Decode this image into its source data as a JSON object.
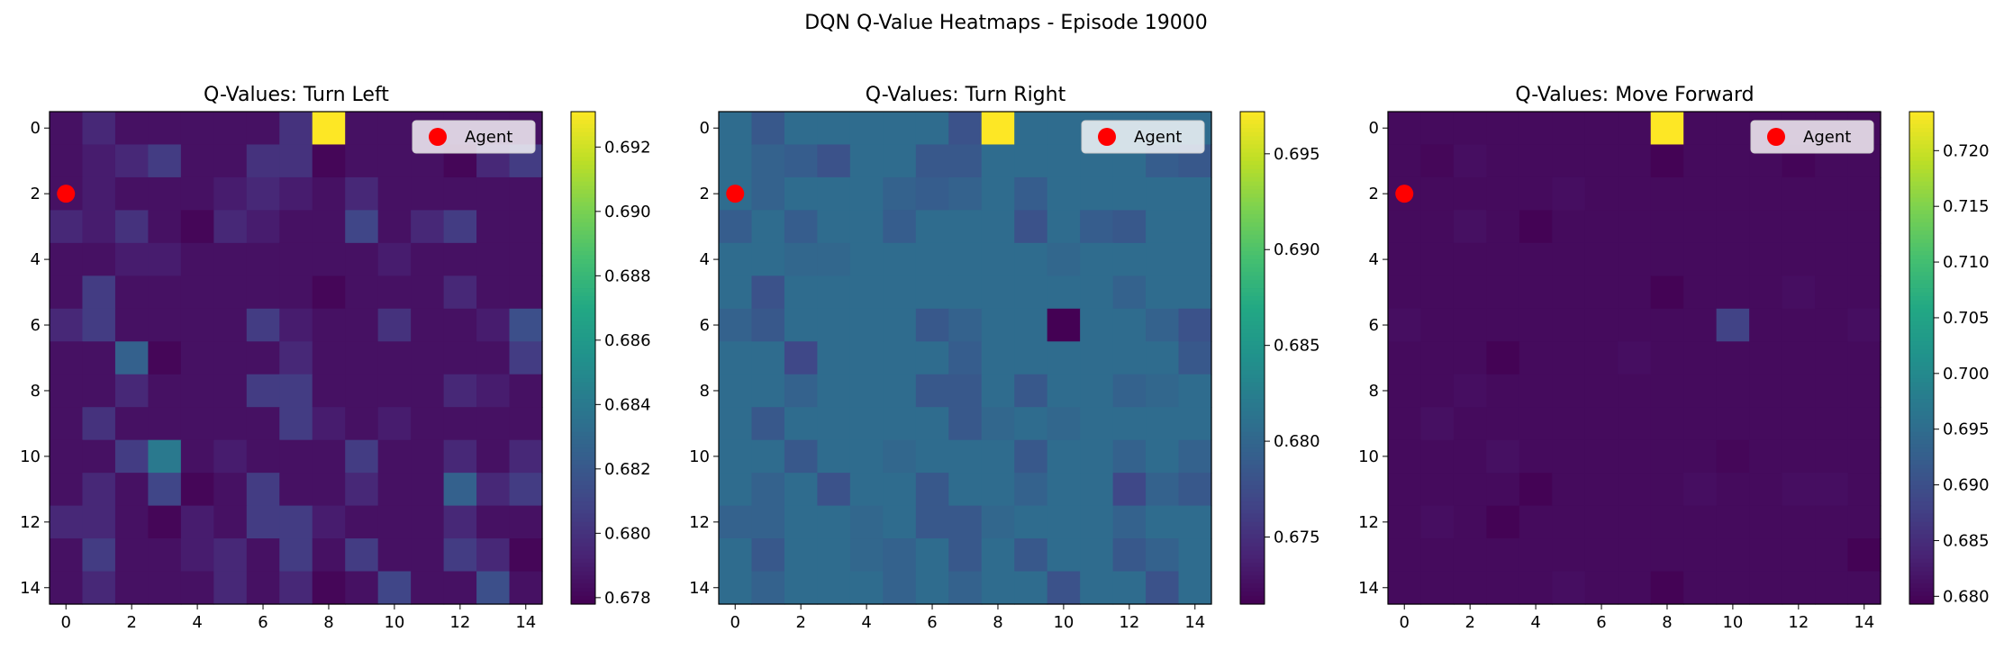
{
  "figure": {
    "title": "DQN Q-Value Heatmaps - Episode 19000",
    "legend_label": "Agent"
  },
  "chart_data": [
    {
      "type": "heatmap",
      "title": "Q-Values: Turn Left",
      "xticks": [
        0,
        2,
        4,
        6,
        8,
        10,
        12,
        14
      ],
      "yticks": [
        0,
        2,
        4,
        6,
        8,
        10,
        12,
        14
      ],
      "xlim": [
        -0.5,
        14.5
      ],
      "ylim": [
        14.5,
        -0.5
      ],
      "colormap": "viridis",
      "vmin": 0.6778,
      "vmax": 0.6931,
      "colorbar_ticks": [
        "0.678",
        "0.680",
        "0.682",
        "0.684",
        "0.686",
        "0.688",
        "0.690",
        "0.692"
      ],
      "agent": {
        "x": 0,
        "y": 2,
        "color": "#ff0000"
      },
      "legend": "top-right",
      "values": [
        [
          0.6785,
          0.6795,
          0.6785,
          0.6785,
          0.6785,
          0.6785,
          0.6785,
          0.68,
          0.6931,
          0.6785,
          0.6785,
          0.6785,
          0.6785,
          0.6785,
          0.6785
        ],
        [
          0.6785,
          0.679,
          0.6795,
          0.6805,
          0.6785,
          0.6785,
          0.68,
          0.68,
          0.678,
          0.6785,
          0.6785,
          0.6785,
          0.678,
          0.6795,
          0.6805
        ],
        [
          0.6785,
          0.679,
          0.6785,
          0.6785,
          0.6785,
          0.679,
          0.6795,
          0.679,
          0.6785,
          0.6795,
          0.6785,
          0.6785,
          0.6785,
          0.6785,
          0.6785
        ],
        [
          0.6795,
          0.679,
          0.68,
          0.6785,
          0.678,
          0.6795,
          0.679,
          0.6785,
          0.6785,
          0.681,
          0.6785,
          0.6795,
          0.6805,
          0.6785,
          0.6785
        ],
        [
          0.6785,
          0.6785,
          0.679,
          0.679,
          0.6785,
          0.6785,
          0.6785,
          0.6785,
          0.6785,
          0.6785,
          0.679,
          0.6785,
          0.6785,
          0.6785,
          0.6785
        ],
        [
          0.6785,
          0.6805,
          0.6785,
          0.6785,
          0.6785,
          0.6785,
          0.6785,
          0.6785,
          0.678,
          0.6785,
          0.6785,
          0.6785,
          0.6795,
          0.6785,
          0.6785
        ],
        [
          0.6795,
          0.6805,
          0.6785,
          0.6785,
          0.6785,
          0.6785,
          0.6805,
          0.679,
          0.6785,
          0.6785,
          0.68,
          0.6785,
          0.6785,
          0.679,
          0.6815
        ],
        [
          0.6785,
          0.6785,
          0.6825,
          0.678,
          0.6785,
          0.6785,
          0.6785,
          0.6795,
          0.6785,
          0.6785,
          0.6785,
          0.6785,
          0.6785,
          0.6785,
          0.6805
        ],
        [
          0.6785,
          0.6785,
          0.6795,
          0.6785,
          0.6785,
          0.6785,
          0.6805,
          0.6805,
          0.6785,
          0.6785,
          0.6785,
          0.6785,
          0.6795,
          0.679,
          0.6785
        ],
        [
          0.6785,
          0.68,
          0.6785,
          0.6785,
          0.6785,
          0.6785,
          0.6785,
          0.6805,
          0.679,
          0.6785,
          0.679,
          0.6785,
          0.6785,
          0.6785,
          0.6785
        ],
        [
          0.6785,
          0.6785,
          0.6805,
          0.684,
          0.6785,
          0.679,
          0.6785,
          0.6785,
          0.6785,
          0.6805,
          0.6785,
          0.6785,
          0.6795,
          0.6785,
          0.6795
        ],
        [
          0.6785,
          0.6795,
          0.6785,
          0.681,
          0.678,
          0.6785,
          0.6805,
          0.6785,
          0.6785,
          0.6795,
          0.6785,
          0.6785,
          0.6825,
          0.6795,
          0.6805
        ],
        [
          0.6795,
          0.6795,
          0.6785,
          0.678,
          0.679,
          0.6785,
          0.6805,
          0.6805,
          0.679,
          0.6785,
          0.6785,
          0.6785,
          0.6795,
          0.6785,
          0.6785
        ],
        [
          0.6785,
          0.6805,
          0.6785,
          0.6785,
          0.679,
          0.6795,
          0.6785,
          0.6805,
          0.6785,
          0.6805,
          0.6785,
          0.6785,
          0.6805,
          0.6795,
          0.678
        ],
        [
          0.6785,
          0.6795,
          0.6785,
          0.6785,
          0.6785,
          0.6795,
          0.6785,
          0.6795,
          0.678,
          0.6785,
          0.681,
          0.6785,
          0.6785,
          0.6815,
          0.6785
        ]
      ]
    },
    {
      "type": "heatmap",
      "title": "Q-Values: Turn Right",
      "xticks": [
        0,
        2,
        4,
        6,
        8,
        10,
        12,
        14
      ],
      "yticks": [
        0,
        2,
        4,
        6,
        8,
        10,
        12,
        14
      ],
      "xlim": [
        -0.5,
        14.5
      ],
      "ylim": [
        14.5,
        -0.5
      ],
      "colormap": "viridis",
      "vmin": 0.6715,
      "vmax": 0.6972,
      "colorbar_ticks": [
        "0.675",
        "0.680",
        "0.685",
        "0.690",
        "0.695"
      ],
      "agent": {
        "x": 0,
        "y": 2,
        "color": "#ff0000"
      },
      "legend": "top-right",
      "values": [
        [
          0.6805,
          0.6785,
          0.6805,
          0.6805,
          0.6805,
          0.6805,
          0.6805,
          0.678,
          0.6972,
          0.6805,
          0.6805,
          0.6805,
          0.6805,
          0.6805,
          0.6805
        ],
        [
          0.6805,
          0.6795,
          0.679,
          0.678,
          0.6805,
          0.6805,
          0.6785,
          0.6785,
          0.6805,
          0.6805,
          0.6805,
          0.6805,
          0.6805,
          0.679,
          0.6785
        ],
        [
          0.6805,
          0.6795,
          0.6805,
          0.6805,
          0.6805,
          0.6795,
          0.679,
          0.6795,
          0.6805,
          0.679,
          0.6805,
          0.6805,
          0.6805,
          0.6805,
          0.6805
        ],
        [
          0.679,
          0.6805,
          0.679,
          0.6805,
          0.6805,
          0.679,
          0.6805,
          0.6805,
          0.6805,
          0.678,
          0.6805,
          0.679,
          0.6785,
          0.6805,
          0.6805
        ],
        [
          0.6805,
          0.6805,
          0.68,
          0.68,
          0.6805,
          0.6805,
          0.6805,
          0.6805,
          0.6805,
          0.6805,
          0.68,
          0.6805,
          0.6805,
          0.6805,
          0.6805
        ],
        [
          0.6805,
          0.678,
          0.6805,
          0.6805,
          0.6805,
          0.6805,
          0.6805,
          0.6805,
          0.6805,
          0.6805,
          0.6805,
          0.6805,
          0.6795,
          0.6805,
          0.6805
        ],
        [
          0.6795,
          0.6785,
          0.6805,
          0.6805,
          0.6805,
          0.6805,
          0.6785,
          0.6795,
          0.6805,
          0.6805,
          0.6715,
          0.6805,
          0.6805,
          0.6795,
          0.678
        ],
        [
          0.6805,
          0.6805,
          0.677,
          0.6805,
          0.6805,
          0.6805,
          0.6805,
          0.679,
          0.6805,
          0.6805,
          0.6805,
          0.6805,
          0.6805,
          0.6805,
          0.6785
        ],
        [
          0.6805,
          0.6805,
          0.6795,
          0.6805,
          0.6805,
          0.6805,
          0.6785,
          0.6785,
          0.6805,
          0.6785,
          0.6805,
          0.6805,
          0.6795,
          0.68,
          0.6805
        ],
        [
          0.6805,
          0.6785,
          0.6805,
          0.6805,
          0.6805,
          0.6805,
          0.6805,
          0.6785,
          0.68,
          0.6805,
          0.68,
          0.6805,
          0.6805,
          0.6805,
          0.6805
        ],
        [
          0.6805,
          0.6805,
          0.6785,
          0.6805,
          0.6805,
          0.68,
          0.6805,
          0.6805,
          0.6805,
          0.6785,
          0.6805,
          0.6805,
          0.6795,
          0.6805,
          0.6795
        ],
        [
          0.6805,
          0.6795,
          0.6805,
          0.678,
          0.6805,
          0.6805,
          0.6785,
          0.6805,
          0.6805,
          0.6795,
          0.6805,
          0.6805,
          0.677,
          0.6795,
          0.6785
        ],
        [
          0.6795,
          0.6795,
          0.6805,
          0.6805,
          0.68,
          0.6805,
          0.6785,
          0.6785,
          0.68,
          0.6805,
          0.6805,
          0.6805,
          0.6795,
          0.6805,
          0.6805
        ],
        [
          0.6805,
          0.6785,
          0.6805,
          0.6805,
          0.68,
          0.6795,
          0.6805,
          0.6785,
          0.6805,
          0.6785,
          0.6805,
          0.6805,
          0.6785,
          0.6795,
          0.6805
        ],
        [
          0.6805,
          0.6795,
          0.6805,
          0.6805,
          0.6805,
          0.6795,
          0.6805,
          0.6795,
          0.6805,
          0.6805,
          0.678,
          0.6805,
          0.6805,
          0.678,
          0.6805
        ]
      ]
    },
    {
      "type": "heatmap",
      "title": "Q-Values: Move Forward",
      "xticks": [
        0,
        2,
        4,
        6,
        8,
        10,
        12,
        14
      ],
      "yticks": [
        0,
        2,
        4,
        6,
        8,
        10,
        12,
        14
      ],
      "xlim": [
        -0.5,
        14.5
      ],
      "ylim": [
        14.5,
        -0.5
      ],
      "colormap": "viridis",
      "vmin": 0.6793,
      "vmax": 0.7235,
      "colorbar_ticks": [
        "0.680",
        "0.685",
        "0.690",
        "0.695",
        "0.700",
        "0.705",
        "0.710",
        "0.715",
        "0.720"
      ],
      "agent": {
        "x": 0,
        "y": 2,
        "color": "#ff0000"
      },
      "legend": "top-right",
      "values": [
        [
          0.6805,
          0.6805,
          0.6805,
          0.6805,
          0.6805,
          0.6805,
          0.6805,
          0.6805,
          0.7235,
          0.6805,
          0.6805,
          0.6805,
          0.6805,
          0.6805,
          0.6805
        ],
        [
          0.6805,
          0.68,
          0.681,
          0.6805,
          0.6805,
          0.6805,
          0.6805,
          0.6805,
          0.6795,
          0.6805,
          0.6805,
          0.6805,
          0.6798,
          0.6805,
          0.6805
        ],
        [
          0.6805,
          0.6805,
          0.6805,
          0.6805,
          0.6805,
          0.681,
          0.6805,
          0.6805,
          0.6805,
          0.6805,
          0.6805,
          0.6805,
          0.6805,
          0.6805,
          0.6805
        ],
        [
          0.6805,
          0.6805,
          0.6812,
          0.6805,
          0.6795,
          0.6805,
          0.6805,
          0.6805,
          0.6805,
          0.6805,
          0.6805,
          0.6805,
          0.6805,
          0.6805,
          0.6805
        ],
        [
          0.6805,
          0.6805,
          0.6805,
          0.6805,
          0.6805,
          0.6805,
          0.6805,
          0.6805,
          0.6805,
          0.6805,
          0.6805,
          0.6805,
          0.6805,
          0.6805,
          0.6805
        ],
        [
          0.6805,
          0.6805,
          0.6805,
          0.6805,
          0.6805,
          0.6805,
          0.6805,
          0.6805,
          0.6795,
          0.6805,
          0.6805,
          0.6805,
          0.681,
          0.6805,
          0.6805
        ],
        [
          0.681,
          0.6805,
          0.6805,
          0.6805,
          0.6805,
          0.6805,
          0.6805,
          0.6805,
          0.6805,
          0.6805,
          0.688,
          0.6805,
          0.6805,
          0.6805,
          0.681
        ],
        [
          0.6805,
          0.6805,
          0.6805,
          0.6795,
          0.6805,
          0.6805,
          0.6805,
          0.681,
          0.6805,
          0.6805,
          0.6805,
          0.6805,
          0.6805,
          0.6805,
          0.6805
        ],
        [
          0.6805,
          0.6805,
          0.681,
          0.6805,
          0.6805,
          0.6805,
          0.6805,
          0.6805,
          0.6805,
          0.6805,
          0.6805,
          0.6805,
          0.6805,
          0.6805,
          0.6805
        ],
        [
          0.6805,
          0.6812,
          0.6805,
          0.6805,
          0.6805,
          0.6805,
          0.6805,
          0.6805,
          0.6805,
          0.6805,
          0.6805,
          0.6805,
          0.6805,
          0.6805,
          0.6805
        ],
        [
          0.6805,
          0.6805,
          0.6805,
          0.6812,
          0.6805,
          0.6805,
          0.6805,
          0.6805,
          0.6805,
          0.6805,
          0.68,
          0.6805,
          0.6805,
          0.6805,
          0.6805
        ],
        [
          0.6805,
          0.6805,
          0.6805,
          0.6805,
          0.6795,
          0.6805,
          0.6805,
          0.6805,
          0.6805,
          0.681,
          0.6805,
          0.6805,
          0.681,
          0.681,
          0.6805
        ],
        [
          0.6805,
          0.681,
          0.6805,
          0.6795,
          0.6805,
          0.6805,
          0.6805,
          0.6805,
          0.6805,
          0.6805,
          0.6805,
          0.6805,
          0.6805,
          0.6805,
          0.6805
        ],
        [
          0.6805,
          0.6805,
          0.6805,
          0.6805,
          0.6805,
          0.6805,
          0.6805,
          0.6805,
          0.6805,
          0.6805,
          0.6805,
          0.6805,
          0.6805,
          0.6805,
          0.6795
        ],
        [
          0.6805,
          0.6805,
          0.6805,
          0.6805,
          0.6805,
          0.681,
          0.6805,
          0.6805,
          0.6795,
          0.6805,
          0.6805,
          0.6805,
          0.6805,
          0.6805,
          0.6805
        ]
      ]
    }
  ]
}
